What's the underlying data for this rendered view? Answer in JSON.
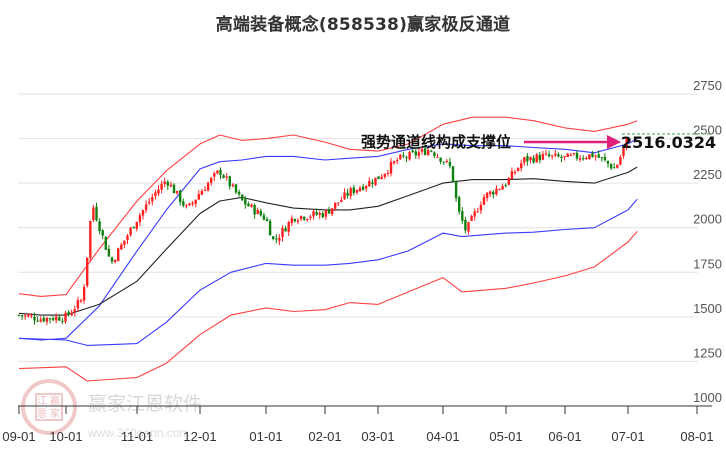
{
  "title": "高端装备概念(858538)赢家极反通道",
  "colors": {
    "up": "#ff2020",
    "down": "#108010",
    "outer_band": "#ff4040",
    "inner_band": "#3a3aff",
    "mid_line": "#222222",
    "arrow": "#e0207a",
    "grid": "#e2e2e2"
  },
  "annotation": {
    "label": "强势通道线构成支撑位",
    "value": "2516.0324"
  },
  "watermark": {
    "text": "赢家江恩软件",
    "url": "www.360gann.com",
    "seal_chars": [
      "江",
      "赢",
      "恩",
      "家"
    ]
  },
  "chart_data": {
    "type": "candlestick",
    "title": "高端装备概念(858538)赢家极反通道",
    "xlabel": "",
    "ylabel": "",
    "ylim": [
      1000,
      2800
    ],
    "yticks": [
      1000,
      1250,
      1500,
      1750,
      2000,
      2250,
      2500,
      2750
    ],
    "xticks": [
      "09-01",
      "10-01",
      "11-01",
      "12-01",
      "01-01",
      "02-01",
      "03-01",
      "04-01",
      "05-01",
      "06-01",
      "07-01",
      "08-01"
    ],
    "grid": "horizontal",
    "legend": "none",
    "annotations": [
      {
        "text": "强势通道线构成支撑位",
        "type": "arrow-label",
        "target_value": 2516.0324
      },
      {
        "text": "2516.0324",
        "type": "value-label"
      }
    ],
    "series": [
      {
        "name": "outer_upper_band",
        "color": "#ff4040",
        "points": [
          [
            "09-01",
            1630
          ],
          [
            "09-15",
            1615
          ],
          [
            "10-01",
            1625
          ],
          [
            "10-15",
            1880
          ],
          [
            "11-01",
            2150
          ],
          [
            "11-15",
            2320
          ],
          [
            "12-01",
            2470
          ],
          [
            "12-10",
            2520
          ],
          [
            "12-20",
            2490
          ],
          [
            "01-01",
            2500
          ],
          [
            "01-15",
            2520
          ],
          [
            "02-01",
            2480
          ],
          [
            "02-15",
            2440
          ],
          [
            "03-01",
            2430
          ],
          [
            "03-15",
            2470
          ],
          [
            "04-01",
            2580
          ],
          [
            "04-15",
            2620
          ],
          [
            "05-01",
            2620
          ],
          [
            "05-15",
            2600
          ],
          [
            "06-01",
            2560
          ],
          [
            "06-15",
            2540
          ],
          [
            "07-01",
            2580
          ],
          [
            "07-05",
            2600
          ]
        ]
      },
      {
        "name": "inner_upper_band",
        "color": "#3a3aff",
        "points": [
          [
            "09-01",
            1380
          ],
          [
            "09-15",
            1370
          ],
          [
            "10-01",
            1380
          ],
          [
            "10-15",
            1560
          ],
          [
            "11-01",
            1870
          ],
          [
            "11-15",
            2100
          ],
          [
            "12-01",
            2330
          ],
          [
            "12-10",
            2370
          ],
          [
            "12-20",
            2380
          ],
          [
            "01-01",
            2400
          ],
          [
            "01-15",
            2400
          ],
          [
            "02-01",
            2380
          ],
          [
            "02-15",
            2390
          ],
          [
            "03-01",
            2400
          ],
          [
            "03-15",
            2440
          ],
          [
            "04-01",
            2470
          ],
          [
            "04-15",
            2460
          ],
          [
            "05-01",
            2460
          ],
          [
            "05-15",
            2450
          ],
          [
            "06-01",
            2440
          ],
          [
            "06-15",
            2420
          ],
          [
            "07-01",
            2470
          ],
          [
            "07-05",
            2500
          ]
        ]
      },
      {
        "name": "middle_line",
        "color": "#222222",
        "points": [
          [
            "09-01",
            1520
          ],
          [
            "09-15",
            1510
          ],
          [
            "10-01",
            1510
          ],
          [
            "10-15",
            1570
          ],
          [
            "11-01",
            1700
          ],
          [
            "11-15",
            1880
          ],
          [
            "12-01",
            2080
          ],
          [
            "12-10",
            2150
          ],
          [
            "12-20",
            2170
          ],
          [
            "01-01",
            2140
          ],
          [
            "01-15",
            2110
          ],
          [
            "02-01",
            2100
          ],
          [
            "02-15",
            2100
          ],
          [
            "03-01",
            2120
          ],
          [
            "03-15",
            2180
          ],
          [
            "04-01",
            2250
          ],
          [
            "04-15",
            2270
          ],
          [
            "05-01",
            2270
          ],
          [
            "05-15",
            2275
          ],
          [
            "06-01",
            2260
          ],
          [
            "06-15",
            2250
          ],
          [
            "07-01",
            2310
          ],
          [
            "07-05",
            2340
          ]
        ]
      },
      {
        "name": "inner_lower_band",
        "color": "#3a3aff",
        "points": [
          [
            "09-01",
            1380
          ],
          [
            "10-01",
            1370
          ],
          [
            "10-10",
            1340
          ],
          [
            "11-01",
            1350
          ],
          [
            "11-15",
            1470
          ],
          [
            "12-01",
            1650
          ],
          [
            "12-15",
            1750
          ],
          [
            "01-01",
            1800
          ],
          [
            "01-15",
            1790
          ],
          [
            "02-01",
            1790
          ],
          [
            "02-15",
            1800
          ],
          [
            "03-01",
            1820
          ],
          [
            "03-15",
            1870
          ],
          [
            "04-01",
            1970
          ],
          [
            "04-10",
            1950
          ],
          [
            "05-01",
            1970
          ],
          [
            "05-15",
            1975
          ],
          [
            "06-01",
            1990
          ],
          [
            "06-15",
            2000
          ],
          [
            "07-01",
            2100
          ],
          [
            "07-05",
            2160
          ]
        ]
      },
      {
        "name": "outer_lower_band",
        "color": "#ff4040",
        "points": [
          [
            "09-01",
            1210
          ],
          [
            "10-01",
            1220
          ],
          [
            "10-10",
            1140
          ],
          [
            "11-01",
            1160
          ],
          [
            "11-15",
            1240
          ],
          [
            "12-01",
            1400
          ],
          [
            "12-15",
            1510
          ],
          [
            "01-01",
            1550
          ],
          [
            "01-15",
            1530
          ],
          [
            "02-01",
            1540
          ],
          [
            "02-15",
            1580
          ],
          [
            "03-01",
            1570
          ],
          [
            "03-15",
            1640
          ],
          [
            "04-01",
            1720
          ],
          [
            "04-10",
            1640
          ],
          [
            "05-01",
            1660
          ],
          [
            "05-15",
            1690
          ],
          [
            "06-01",
            1730
          ],
          [
            "06-15",
            1780
          ],
          [
            "07-01",
            1920
          ],
          [
            "07-05",
            1980
          ]
        ]
      },
      {
        "name": "price_close",
        "color": "#ff2020",
        "points": [
          [
            "09-01",
            1510
          ],
          [
            "09-15",
            1490
          ],
          [
            "10-01",
            1500
          ],
          [
            "10-08",
            1600
          ],
          [
            "10-10",
            1850
          ],
          [
            "10-12",
            2140
          ],
          [
            "10-20",
            1800
          ],
          [
            "11-01",
            2050
          ],
          [
            "11-10",
            2200
          ],
          [
            "11-15",
            2270
          ],
          [
            "11-25",
            2100
          ],
          [
            "12-01",
            2200
          ],
          [
            "12-10",
            2320
          ],
          [
            "12-20",
            2150
          ],
          [
            "01-01",
            2050
          ],
          [
            "01-05",
            1920
          ],
          [
            "01-15",
            2060
          ],
          [
            "02-01",
            2080
          ],
          [
            "02-15",
            2200
          ],
          [
            "03-01",
            2280
          ],
          [
            "03-10",
            2380
          ],
          [
            "03-20",
            2420
          ],
          [
            "03-25",
            2440
          ],
          [
            "04-01",
            2380
          ],
          [
            "04-05",
            2330
          ],
          [
            "04-08",
            2100
          ],
          [
            "04-12",
            1980
          ],
          [
            "04-20",
            2170
          ],
          [
            "05-01",
            2250
          ],
          [
            "05-10",
            2380
          ],
          [
            "05-20",
            2400
          ],
          [
            "06-01",
            2390
          ],
          [
            "06-15",
            2410
          ],
          [
            "06-25",
            2330
          ],
          [
            "07-01",
            2500
          ]
        ]
      }
    ]
  },
  "axes": {
    "y_labels": [
      "2750",
      "2500",
      "2250",
      "2000",
      "1750",
      "1500",
      "1250",
      "1000"
    ],
    "x_labels": [
      "09-01",
      "10-01",
      "11-01",
      "12-01",
      "01-01",
      "02-01",
      "03-01",
      "04-01",
      "05-01",
      "06-01",
      "07-01",
      "08-01"
    ]
  }
}
